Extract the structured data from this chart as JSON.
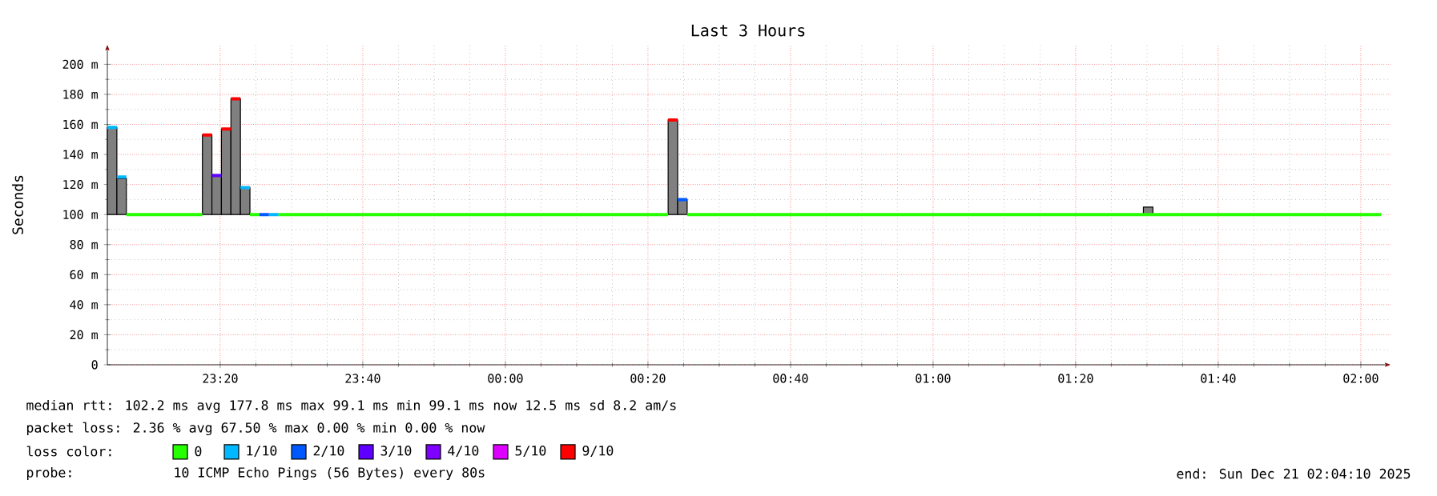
{
  "chart_data": {
    "type": "step",
    "title": "Last 3 Hours",
    "ylabel": "Seconds",
    "legend_title": "loss color:",
    "legend": "bottom",
    "grid": true,
    "xlim": [
      "2025-12-20T23:04:10",
      "2025-12-21T02:04:10"
    ],
    "ylim": [
      0,
      213
    ],
    "xticks": [
      {
        "value": "2025-12-20T23:20",
        "label": "23:20"
      },
      {
        "value": "2025-12-20T23:40",
        "label": "23:40"
      },
      {
        "value": "2025-12-21T00:00",
        "label": "00:00"
      },
      {
        "value": "2025-12-21T00:20",
        "label": "00:20"
      },
      {
        "value": "2025-12-21T00:40",
        "label": "00:40"
      },
      {
        "value": "2025-12-21T01:00",
        "label": "01:00"
      },
      {
        "value": "2025-12-21T01:20",
        "label": "01:20"
      },
      {
        "value": "2025-12-21T01:40",
        "label": "01:40"
      },
      {
        "value": "2025-12-21T02:00",
        "label": "02:00"
      }
    ],
    "yticks": [
      0,
      {
        "value": 20,
        "label": "20 m"
      },
      {
        "value": 40,
        "label": "40 m"
      },
      {
        "value": 60,
        "label": "60 m"
      },
      {
        "value": 80,
        "label": "80 m"
      },
      {
        "value": 100,
        "label": "100 m"
      },
      {
        "value": 120,
        "label": "120 m"
      },
      {
        "value": 140,
        "label": "140 m"
      },
      {
        "value": 160,
        "label": "160 m"
      },
      {
        "value": 180,
        "label": "180 m"
      },
      {
        "value": 200,
        "label": "200 m"
      }
    ],
    "series": [
      {
        "type": "bar",
        "color": "#808080",
        "x": [
          "2025-12-20T23:04:50",
          "2025-12-20T23:06:10",
          "2025-12-20T23:18:10",
          "2025-12-20T23:19:30",
          "2025-12-20T23:20:50",
          "2025-12-20T23:22:10",
          "2025-12-20T23:23:30",
          "2025-12-21T00:23:30",
          "2025-12-21T00:24:50",
          "2025-12-21T01:30:10"
        ],
        "base": [
          100,
          100,
          100,
          100,
          100,
          100,
          100,
          100,
          100,
          100
        ],
        "values": [
          58,
          24,
          53,
          26,
          57,
          77,
          18,
          63,
          10,
          5
        ]
      },
      {
        "name": "0",
        "color": "#26ff00",
        "x": [
          "2025-12-20T23:06:50",
          "2025-12-20T23:17:30",
          null,
          "2025-12-20T23:24:10",
          "2025-12-20T23:25:30",
          null,
          "2025-12-20T23:28:10",
          "2025-12-21T00:22:50",
          null,
          "2025-12-21T00:25:30",
          "2025-12-21T02:02:50"
        ],
        "values": [
          100,
          100,
          null,
          100,
          100,
          null,
          100,
          100,
          null,
          100,
          100
        ]
      },
      {
        "name": "1/10",
        "color": "#00b8ff",
        "x": [
          "2025-12-20T23:04:10",
          "2025-12-20T23:05:30",
          "2025-12-20T23:06:50",
          null,
          "2025-12-20T23:22:50",
          "2025-12-20T23:24:10",
          null,
          "2025-12-20T23:26:50",
          "2025-12-20T23:28:10"
        ],
        "values": [
          158,
          125,
          125,
          null,
          118,
          118,
          null,
          100,
          100
        ]
      },
      {
        "name": "2/10",
        "color": "#0059ff",
        "x": [
          "2025-12-20T23:25:30",
          "2025-12-20T23:26:50",
          null,
          "2025-12-21T00:24:10",
          "2025-12-21T00:25:30"
        ],
        "values": [
          100,
          100,
          null,
          110,
          110
        ]
      },
      {
        "name": "3/10",
        "color": "#5e00ff",
        "x": [
          "2025-12-20T23:18:50",
          "2025-12-20T23:20:10"
        ],
        "values": [
          126,
          126
        ]
      },
      {
        "name": "4/10",
        "color": "#7e00ff"
      },
      {
        "name": "5/10",
        "color": "#dd00ff"
      },
      {
        "name": "9/10",
        "color": "#ff0000",
        "x": [
          "2025-12-20T23:17:30",
          "2025-12-20T23:18:50",
          null,
          "2025-12-20T23:20:10",
          "2025-12-20T23:21:30",
          "2025-12-20T23:22:50",
          null,
          "2025-12-21T00:22:50",
          "2025-12-21T00:24:10"
        ],
        "values": [
          153,
          153,
          null,
          157,
          177,
          177,
          null,
          163,
          163
        ]
      }
    ],
    "annotations": [
      "median rtt: 102.2 ms avg 177.8 ms max 99.1 ms min 99.1 ms now 12.5 ms sd 8.2 am/s",
      "packet loss: 2.36 % avg 67.50 % max 0.00 % min 0.00 % now",
      "probe:",
      "10 ICMP Echo Pings (56 Bytes) every 80s",
      "end: Sun Dec 21 02:04:10 2025"
    ]
  }
}
